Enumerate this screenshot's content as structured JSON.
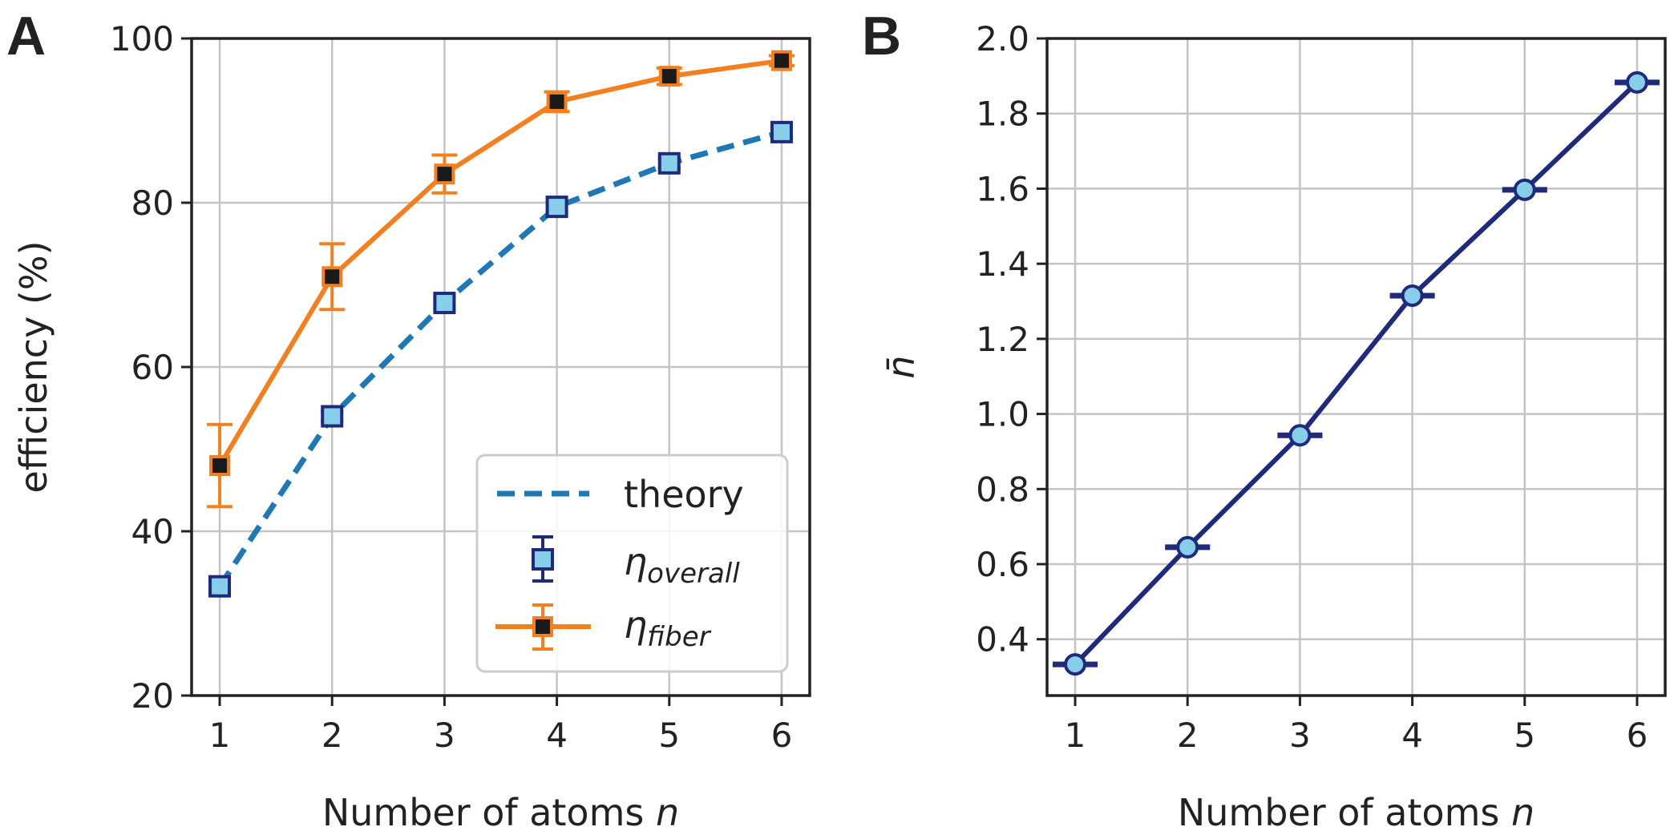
{
  "panels": {
    "a": {
      "label": "A"
    },
    "b": {
      "label": "B"
    }
  },
  "chart_data": [
    {
      "type": "line",
      "panel": "A",
      "xlabel": "Number of atoms ",
      "xlabel_var": "n",
      "ylabel": "efficiency (%)",
      "xlim": [
        0.75,
        6.25
      ],
      "ylim": [
        20,
        100
      ],
      "x": [
        1,
        2,
        3,
        4,
        5,
        6
      ],
      "x_ticks": [
        "1",
        "2",
        "3",
        "4",
        "5",
        "6"
      ],
      "y_ticks": [
        "20",
        "40",
        "60",
        "80",
        "100"
      ],
      "grid": true,
      "legend_position": "lower-right",
      "series": [
        {
          "name": "theory",
          "style": "dashed",
          "color": "#1f77b4",
          "values": [
            33.3,
            54,
            67.8,
            79.5,
            84.8,
            88.6
          ]
        },
        {
          "name": "η",
          "name_sub": "overall",
          "style": "markers",
          "marker": "square",
          "color": "#87ceeb",
          "edge_color": "#1f2a7a",
          "values": [
            33.3,
            54,
            67.8,
            79.5,
            84.8,
            88.6
          ],
          "errors": [
            0.6,
            0.6,
            0.6,
            0.6,
            0.6,
            0.6
          ]
        },
        {
          "name": "η",
          "name_sub": "fiber",
          "style": "solid-with-markers",
          "marker": "square",
          "color": "#f28021",
          "face_color": "#1a1a1a",
          "values": [
            48,
            71,
            83.5,
            92.3,
            95.4,
            97.3
          ],
          "errors": [
            5,
            4,
            2.3,
            1.2,
            1.0,
            0.6
          ]
        }
      ]
    },
    {
      "type": "line",
      "panel": "B",
      "xlabel": "Number of atoms ",
      "xlabel_var": "n",
      "ylabel": "n̄",
      "xlim": [
        0.75,
        6.25
      ],
      "ylim": [
        0.25,
        2.0
      ],
      "x": [
        1,
        2,
        3,
        4,
        5,
        6
      ],
      "x_ticks": [
        "1",
        "2",
        "3",
        "4",
        "5",
        "6"
      ],
      "y_ticks": [
        "0.4",
        "0.6",
        "0.8",
        "1.0",
        "1.2",
        "1.4",
        "1.6",
        "1.8",
        "2.0"
      ],
      "grid": true,
      "series": [
        {
          "style": "solid-with-markers",
          "marker": "circle",
          "color": "#1f2a7a",
          "marker_color": "#87ceeb",
          "values": [
            0.333,
            0.645,
            0.943,
            1.315,
            1.597,
            1.883
          ],
          "xerr": [
            0.2,
            0.2,
            0.2,
            0.2,
            0.2,
            0.2
          ]
        }
      ]
    }
  ]
}
